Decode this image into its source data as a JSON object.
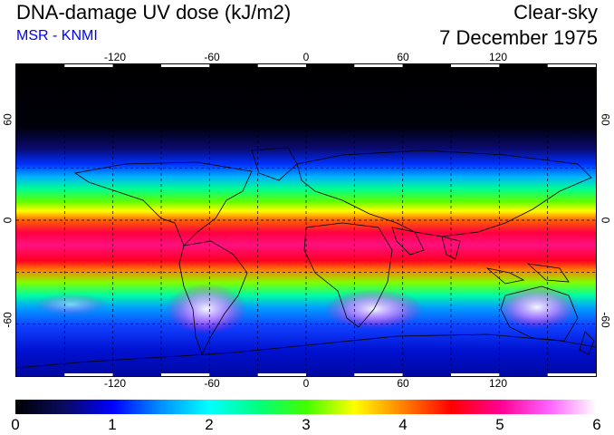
{
  "header": {
    "title": "DNA-damage UV dose (kJ/m2)",
    "subtitle": "MSR - KNMI",
    "subtitle_color": "#0000ff",
    "condition": "Clear-sky",
    "date": "7 December 1975"
  },
  "map": {
    "longitude_labels": [
      "-120",
      "-60",
      "0",
      "60",
      "120"
    ],
    "longitude_values": [
      -120,
      -60,
      0,
      60,
      120
    ],
    "latitude_labels": [
      "60",
      "0",
      "-60"
    ],
    "latitude_values": [
      60,
      0,
      -60
    ],
    "lon_range": [
      -180,
      180
    ],
    "lat_range": [
      -90,
      90
    ],
    "grid_spacing_deg": 30
  },
  "colorbar": {
    "labels": [
      "0",
      "1",
      "2",
      "3",
      "4",
      "5",
      "6"
    ],
    "range": [
      0,
      6
    ],
    "stops": [
      {
        "v": 0.0,
        "c": "#000000"
      },
      {
        "v": 0.5,
        "c": "#0a0a60"
      },
      {
        "v": 1.0,
        "c": "#0000ff"
      },
      {
        "v": 1.5,
        "c": "#0090ff"
      },
      {
        "v": 2.0,
        "c": "#00ffff"
      },
      {
        "v": 2.5,
        "c": "#00ff80"
      },
      {
        "v": 3.0,
        "c": "#40ff00"
      },
      {
        "v": 3.5,
        "c": "#ffff00"
      },
      {
        "v": 4.0,
        "c": "#ff8000"
      },
      {
        "v": 4.5,
        "c": "#ff0000"
      },
      {
        "v": 5.0,
        "c": "#ff0090"
      },
      {
        "v": 5.5,
        "c": "#ff60ff"
      },
      {
        "v": 6.0,
        "c": "#ffffff"
      }
    ]
  }
}
